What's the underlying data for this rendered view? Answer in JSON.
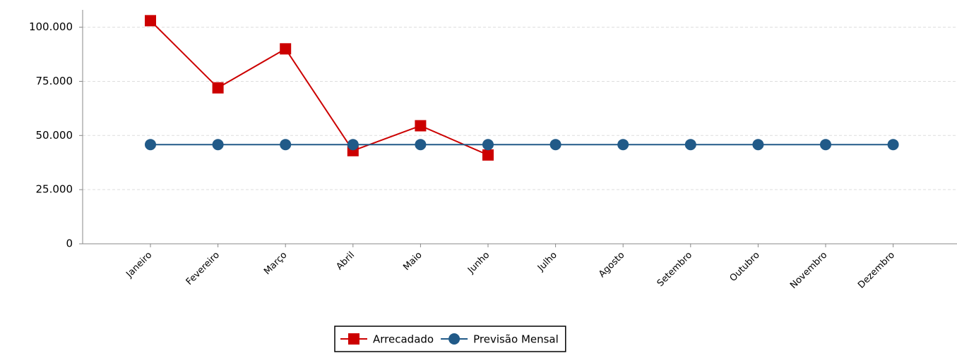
{
  "chart_data": {
    "type": "line",
    "categories": [
      "Janeiro",
      "Fevereiro",
      "Março",
      "Abril",
      "Maio",
      "Junho",
      "Julho",
      "Agosto",
      "Setembro",
      "Outubro",
      "Novembro",
      "Dezembro"
    ],
    "series": [
      {
        "name": "Arrecadado",
        "color": "#cc0000",
        "marker": "square",
        "values": [
          103000,
          72000,
          90000,
          43000,
          54500,
          41000,
          null,
          null,
          null,
          null,
          null,
          null
        ]
      },
      {
        "name": "Previsão Mensal",
        "color": "#215a88",
        "marker": "circle",
        "values": [
          45800,
          45800,
          45800,
          45800,
          45800,
          45800,
          45800,
          45800,
          45800,
          45800,
          45800,
          45800
        ]
      }
    ],
    "ylim": [
      0,
      108000
    ],
    "yticks": [
      0,
      {
        "value": 25000,
        "label": "25.000"
      },
      {
        "value": 50000,
        "label": "50.000"
      },
      {
        "value": 75000,
        "label": "75.000"
      },
      {
        "value": 100000,
        "label": "100.000"
      }
    ],
    "grid": true,
    "legend": "bottom"
  }
}
